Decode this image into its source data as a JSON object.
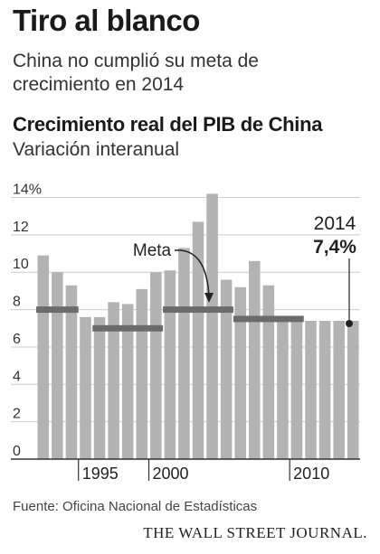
{
  "header": {
    "title": "Tiro al blanco",
    "subtitle": "China no cumplió su meta de crecimiento en 2014"
  },
  "chart_data": {
    "type": "bar",
    "title": "Crecimiento real del PIB de China",
    "subtitle": "Variación interanual",
    "x": [
      1992,
      1993,
      1994,
      1995,
      1996,
      1997,
      1998,
      1999,
      2000,
      2001,
      2002,
      2003,
      2004,
      2005,
      2006,
      2007,
      2008,
      2009,
      2010,
      2011,
      2012,
      2013,
      2014
    ],
    "values": [
      10.9,
      10.0,
      9.3,
      7.6,
      7.6,
      8.4,
      8.3,
      9.1,
      10.0,
      10.1,
      11.3,
      12.7,
      14.2,
      9.6,
      9.2,
      10.6,
      9.3,
      7.5,
      7.4,
      7.4,
      7.4,
      7.4,
      7.4
    ],
    "targets": [
      {
        "from": 1991.5,
        "to": 1994.5,
        "value": 8.0
      },
      {
        "from": 1995.5,
        "to": 2000.5,
        "value": 7.0
      },
      {
        "from": 2000.5,
        "to": 2005.5,
        "value": 8.0
      },
      {
        "from": 2005.5,
        "to": 2010.5,
        "value": 7.5
      }
    ],
    "yticks": [
      0,
      2,
      4,
      6,
      8,
      10,
      12,
      14
    ],
    "ytick_top_label": "14%",
    "ylim": [
      0,
      14.8
    ],
    "xticks": [
      {
        "year": 1995,
        "label": "1995"
      },
      {
        "year": 2000,
        "label": "2000"
      },
      {
        "year": 2010,
        "label": "2010"
      }
    ],
    "annotations": {
      "target_label": "Meta",
      "latest_year": "2014",
      "latest_value": "7,4%"
    },
    "colors": {
      "bar": "#b3b3b3",
      "target": "#6b6b6b",
      "grid": "#cccccc",
      "axis": "#333333"
    },
    "grid": true
  },
  "footer": {
    "source": "Fuente: Oficina Nacional de Estadísticas",
    "publisher": "THE WALL STREET JOURNAL."
  }
}
